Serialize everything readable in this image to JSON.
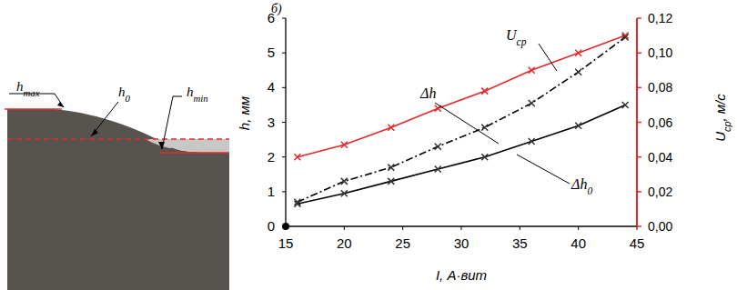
{
  "diagram": {
    "h_max": "hmax",
    "h_0": "h0",
    "h_min": "hmin"
  },
  "chart_data": {
    "type": "line",
    "title": "б)",
    "x_label": "I, А·вит",
    "y_label": "h, мм",
    "y2_label": "Uср, м/с",
    "x": [
      16,
      20,
      24,
      28,
      32,
      36,
      40,
      44
    ],
    "xlim": [
      15,
      45
    ],
    "xticks": [
      15,
      20,
      25,
      30,
      35,
      40,
      45
    ],
    "ylim": [
      0,
      6
    ],
    "yticks": [
      0,
      1,
      2,
      3,
      4,
      5,
      6
    ],
    "y2lim": [
      0,
      0.12
    ],
    "y2ticks": [
      {
        "value": 0,
        "label": "0,00"
      },
      {
        "value": 0.02,
        "label": "0,02"
      },
      {
        "value": 0.04,
        "label": "0,04"
      },
      {
        "value": 0.06,
        "label": "0,06"
      },
      {
        "value": 0.08,
        "label": "0,08"
      },
      {
        "value": 0.1,
        "label": "0,10"
      },
      {
        "value": 0.12,
        "label": "0,12"
      }
    ],
    "grid": false,
    "series": [
      {
        "name": "Uср",
        "color": "#e8272a",
        "axis": "y2",
        "marker": "x",
        "line_style": "solid",
        "values": [
          0.04,
          0.047,
          0.057,
          0.068,
          0.078,
          0.09,
          0.1,
          0.11
        ]
      },
      {
        "name": "Δh",
        "color": "#000000",
        "marker": "x",
        "line_style": "dashdot",
        "values": [
          0.7,
          1.3,
          1.7,
          2.3,
          2.85,
          3.55,
          4.45,
          5.45
        ]
      },
      {
        "name": "Δh0",
        "color": "#000000",
        "marker": "x",
        "line_style": "solid",
        "values": [
          0.65,
          0.95,
          1.3,
          1.65,
          2.0,
          2.45,
          2.9,
          3.5
        ]
      }
    ]
  }
}
